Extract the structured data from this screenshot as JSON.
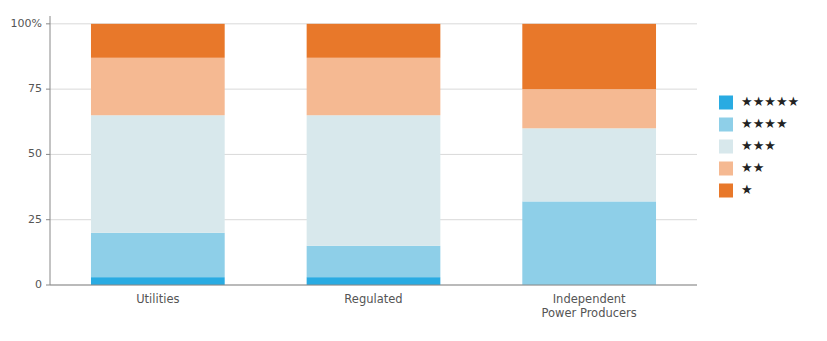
{
  "chart_data": {
    "type": "bar",
    "stacked": true,
    "categories": [
      "Utilities",
      "Regulated",
      "Independent\nPower Producers"
    ],
    "series": [
      {
        "name": "★★★★★",
        "color": "#29ABE2",
        "values": [
          3,
          3,
          0
        ]
      },
      {
        "name": "★★★★",
        "color": "#8ECFE8",
        "values": [
          17,
          12,
          32
        ]
      },
      {
        "name": "★★★",
        "color": "#D8E8EC",
        "values": [
          45,
          50,
          28
        ]
      },
      {
        "name": "★★",
        "color": "#F5B992",
        "values": [
          22,
          22,
          15
        ]
      },
      {
        "name": "★",
        "color": "#E8782A",
        "values": [
          13,
          13,
          25
        ]
      }
    ],
    "ylim": [
      0,
      103
    ],
    "yticks": [
      0,
      25,
      50,
      75,
      {
        "value": 100,
        "label": "100%"
      }
    ],
    "grid": true,
    "legend": "right"
  }
}
